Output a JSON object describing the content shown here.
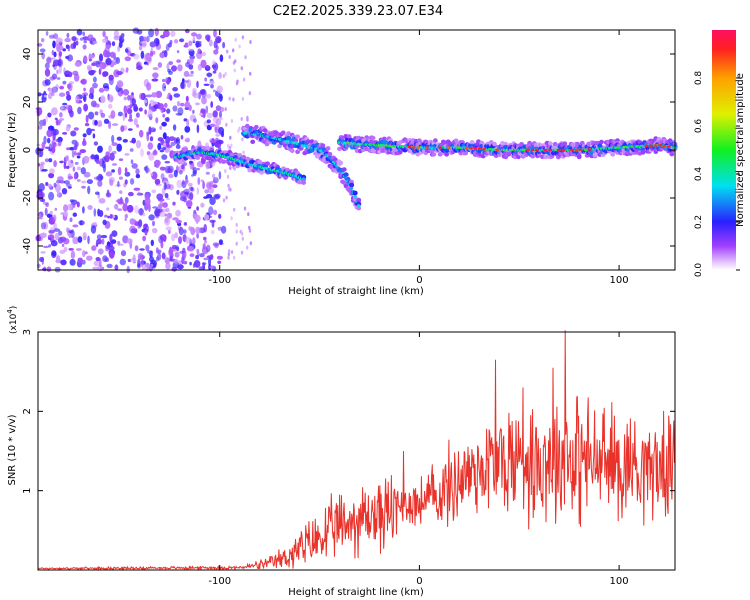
{
  "title": "C2E2.2025.339.23.07.E34",
  "chart_data": [
    {
      "type": "heatmap",
      "name": "spectrogram",
      "title": "C2E2.2025.339.23.07.E34",
      "xlabel": "Height of straight line (km)",
      "ylabel": "Frequency (Hz)",
      "xlim": [
        -191,
        128
      ],
      "ylim": [
        -50,
        50
      ],
      "xticks": [
        -100,
        0,
        100
      ],
      "yticks": [
        -40,
        -20,
        0,
        20,
        40
      ],
      "xtick_labels": [
        "-100",
        "0",
        "100"
      ],
      "ytick_labels": [
        "-40",
        "-20",
        "0",
        "20",
        "40"
      ],
      "colorbar": {
        "label": "Normalized spectral amplitude",
        "range": [
          0,
          1
        ],
        "ticks": [
          0.0,
          0.2,
          0.4,
          0.6,
          0.8
        ],
        "tick_labels": [
          "0.0",
          "0.2",
          "0.4",
          "0.6",
          "0.8"
        ],
        "colormap": "rainbow (white-violet-blue-cyan-green-yellow-orange-red)"
      },
      "features": [
        {
          "label": "noise region",
          "x_range": [
            -191,
            -98
          ],
          "y_range": [
            -50,
            50
          ],
          "amplitude": 0.15
        },
        {
          "label": "lower branch",
          "x": [
            -122,
            -110,
            -100,
            -92,
            -85,
            -75,
            -65,
            -58
          ],
          "y": [
            -3,
            -1,
            -2,
            -4,
            -6,
            -8,
            -10,
            -12
          ]
        },
        {
          "label": "upper branch",
          "x": [
            -88,
            -78,
            -68,
            -58,
            -50,
            -45,
            -40,
            -35,
            -30
          ],
          "y": [
            7,
            6,
            4,
            2,
            0,
            -3,
            -8,
            -14,
            -24
          ]
        },
        {
          "label": "main trace",
          "x": [
            -40,
            -20,
            0,
            20,
            40,
            60,
            80,
            100,
            120,
            128
          ],
          "y": [
            3,
            2,
            1,
            1,
            0,
            0,
            0,
            1,
            2,
            1
          ]
        }
      ]
    },
    {
      "type": "line",
      "name": "snr",
      "xlabel": "Height of straight line (km)",
      "ylabel": "SNR (10 * v/v)",
      "y_multiplier": "(x10^4)",
      "y_multiplier_base": "(x10",
      "y_multiplier_exp": "4",
      "y_multiplier_close": ")",
      "color": "#e8322a",
      "xlim": [
        -191,
        128
      ],
      "ylim": [
        0,
        3
      ],
      "xticks": [
        -100,
        0,
        100
      ],
      "yticks": [
        1,
        2,
        3
      ],
      "xtick_labels": [
        "-100",
        "0",
        "100"
      ],
      "ytick_labels": [
        "1",
        "2",
        "3"
      ],
      "envelope": {
        "x": [
          -191,
          -90,
          -75,
          -68,
          -60,
          -50,
          -40,
          -30,
          -20,
          -12,
          -5,
          0,
          10,
          20,
          30,
          40,
          50,
          60,
          70,
          74,
          80,
          90,
          100,
          110,
          120,
          128
        ],
        "mean": [
          0.02,
          0.03,
          0.08,
          0.15,
          0.25,
          0.4,
          0.55,
          0.65,
          0.7,
          0.75,
          0.85,
          0.85,
          0.95,
          1.15,
          1.3,
          1.35,
          1.4,
          1.4,
          1.4,
          1.45,
          1.4,
          1.35,
          1.35,
          1.35,
          1.3,
          1.3
        ],
        "amp": [
          0.01,
          0.02,
          0.08,
          0.15,
          0.25,
          0.35,
          0.4,
          0.45,
          0.45,
          0.45,
          0.3,
          0.3,
          0.45,
          0.55,
          0.6,
          0.7,
          0.75,
          0.75,
          0.8,
          0.85,
          0.8,
          0.7,
          0.7,
          0.65,
          0.6,
          0.55
        ]
      },
      "peaks": [
        {
          "x": 73,
          "y": 3.05
        },
        {
          "x": 38,
          "y": 2.65
        },
        {
          "x": 67,
          "y": 2.55
        },
        {
          "x": 52,
          "y": 2.3
        },
        {
          "x": -8,
          "y": 1.5
        }
      ]
    }
  ]
}
